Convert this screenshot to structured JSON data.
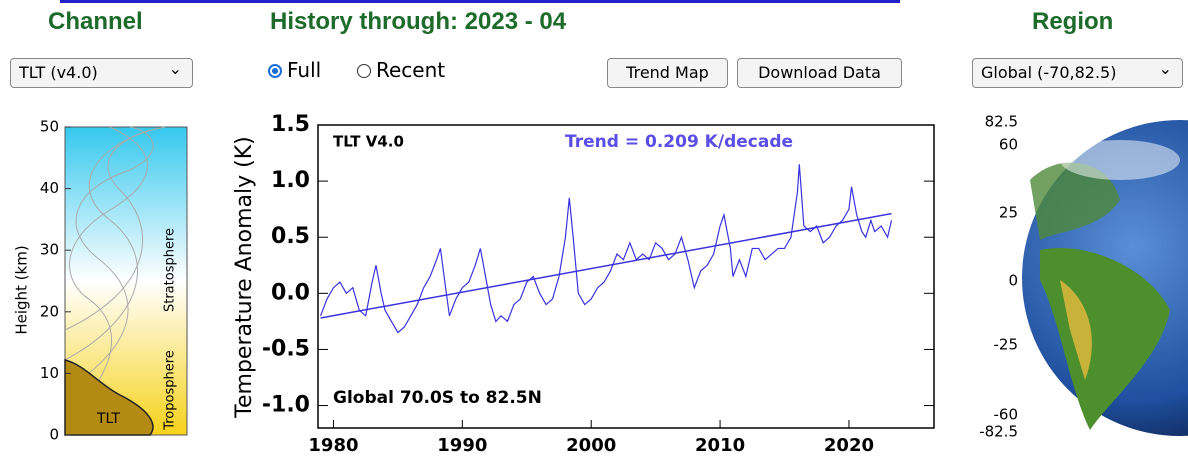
{
  "header": {
    "channel": "Channel",
    "history": "History through: 2023 - 04",
    "region": "Region"
  },
  "controls": {
    "channel_select": "TLT (v4.0)",
    "radio_full": "Full",
    "radio_recent": "Recent",
    "trend_map": "Trend Map",
    "download": "Download Data",
    "region_select": "Global (-70,82.5)"
  },
  "channel_panel": {
    "y_label": "Height  (km)",
    "ylim": [
      0,
      50
    ],
    "yticks": [
      0,
      10,
      20,
      30,
      40,
      50
    ],
    "stratosphere": "Stratosphere",
    "troposphere": "Troposphere",
    "weighting": "TLT"
  },
  "region_map": {
    "lat_labels": [
      "82.5",
      "60",
      "25",
      "0",
      "-25",
      "-60",
      "-82.5"
    ]
  },
  "chart_data": {
    "type": "line",
    "y_label": "Temperature Anomaly (K)",
    "annotations": {
      "channel": "TLT V4.0",
      "trend": "Trend =  0.209 K/decade",
      "region": "Global  70.0S to 82.5N"
    },
    "xlim": [
      1978.8,
      2026.6
    ],
    "xticks": [
      1980,
      1990,
      2000,
      2010,
      2020
    ],
    "ylim": [
      -1.2,
      1.5
    ],
    "yticks": [
      1.5,
      {
        "value": 1,
        "label": "1.0"
      },
      0.5,
      {
        "value": 0,
        "label": "0.0"
      },
      -0.5,
      {
        "value": -1,
        "label": "-1.0"
      }
    ],
    "series": [
      {
        "color": "#3a32e0",
        "x": [
          1979.0,
          1979.5,
          1980.0,
          1980.5,
          1981.0,
          1981.5,
          1982.0,
          1982.5,
          1983.0,
          1983.3,
          1983.7,
          1984.0,
          1984.5,
          1985.0,
          1985.5,
          1986.0,
          1986.5,
          1987.0,
          1987.5,
          1988.0,
          1988.3,
          1988.7,
          1989.0,
          1989.5,
          1990.0,
          1990.5,
          1991.0,
          1991.4,
          1991.8,
          1992.2,
          1992.6,
          1993.0,
          1993.5,
          1994.0,
          1994.5,
          1995.0,
          1995.5,
          1996.0,
          1996.5,
          1997.0,
          1997.5,
          1998.0,
          1998.3,
          1998.6,
          1999.0,
          1999.5,
          2000.0,
          2000.5,
          2001.0,
          2001.5,
          2002.0,
          2002.5,
          2003.0,
          2003.5,
          2004.0,
          2004.5,
          2005.0,
          2005.5,
          2006.0,
          2006.5,
          2007.0,
          2007.5,
          2008.0,
          2008.5,
          2009.0,
          2009.5,
          2010.0,
          2010.3,
          2010.8,
          2011.0,
          2011.5,
          2012.0,
          2012.5,
          2013.0,
          2013.5,
          2014.0,
          2014.5,
          2015.0,
          2015.5,
          2016.0,
          2016.15,
          2016.5,
          2017.0,
          2017.5,
          2018.0,
          2018.5,
          2019.0,
          2019.5,
          2020.0,
          2020.2,
          2020.6,
          2021.0,
          2021.3,
          2021.7,
          2022.0,
          2022.5,
          2023.0,
          2023.3
        ],
        "values": [
          -0.2,
          -0.05,
          0.05,
          0.1,
          0.0,
          0.05,
          -0.15,
          -0.2,
          0.1,
          0.25,
          0.0,
          -0.15,
          -0.25,
          -0.35,
          -0.3,
          -0.2,
          -0.1,
          0.05,
          0.15,
          0.3,
          0.4,
          0.05,
          -0.2,
          -0.05,
          0.05,
          0.1,
          0.25,
          0.4,
          0.15,
          -0.1,
          -0.25,
          -0.2,
          -0.25,
          -0.1,
          -0.05,
          0.1,
          0.15,
          0.0,
          -0.1,
          -0.05,
          0.15,
          0.5,
          0.85,
          0.5,
          0.0,
          -0.1,
          -0.05,
          0.05,
          0.1,
          0.2,
          0.35,
          0.3,
          0.45,
          0.3,
          0.35,
          0.3,
          0.45,
          0.4,
          0.3,
          0.35,
          0.5,
          0.3,
          0.05,
          0.2,
          0.25,
          0.35,
          0.6,
          0.7,
          0.4,
          0.15,
          0.3,
          0.15,
          0.4,
          0.4,
          0.3,
          0.35,
          0.4,
          0.4,
          0.5,
          0.9,
          1.15,
          0.6,
          0.55,
          0.6,
          0.45,
          0.5,
          0.6,
          0.65,
          0.75,
          0.95,
          0.7,
          0.55,
          0.5,
          0.65,
          0.55,
          0.6,
          0.5,
          0.65
        ]
      },
      {
        "color": "#3a32e0",
        "x": [
          1979.0,
          2023.3
        ],
        "values": [
          -0.22,
          0.71
        ]
      }
    ]
  }
}
